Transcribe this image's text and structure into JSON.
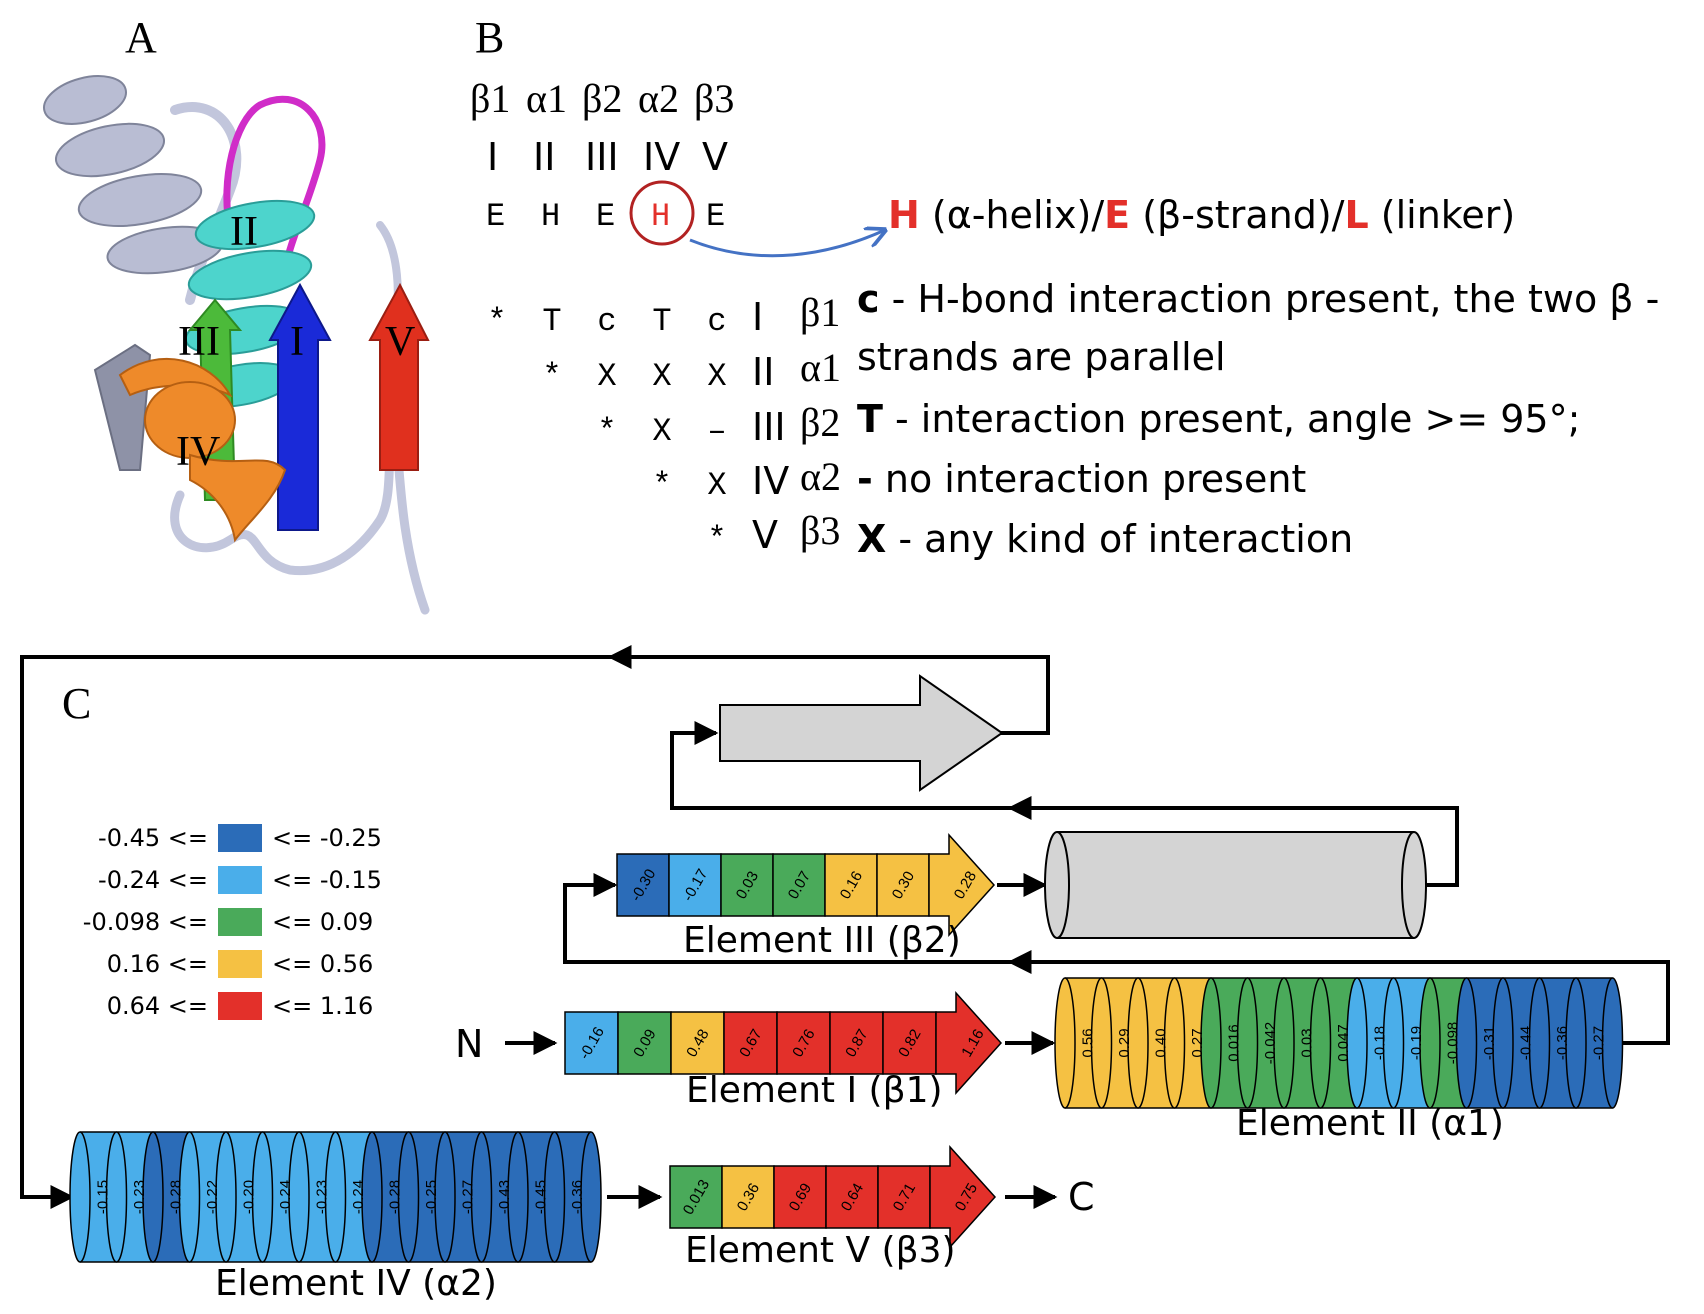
{
  "panels": {
    "a": "A",
    "b": "B",
    "c": "C"
  },
  "panel_a": {
    "labels": [
      "II",
      "III",
      "I",
      "V",
      "IV"
    ]
  },
  "panel_b": {
    "element_names": [
      "β1",
      "α1",
      "β2",
      "α2",
      "β3"
    ],
    "roman": [
      "I",
      "II",
      "III",
      "IV",
      "V"
    ],
    "sse": [
      "E",
      "H",
      "E",
      "H",
      "E"
    ],
    "sse_highlight_index": 3,
    "code_legend": {
      "h": "H",
      "h_text": " (α-helix)/",
      "e": "E",
      "e_text": " (β-strand)/",
      "l": "L",
      "l_text": " (linker)"
    },
    "matrix": [
      {
        "cells": [
          "*",
          "T",
          "c",
          "T",
          "c"
        ],
        "roman": "I",
        "greek": "β1"
      },
      {
        "cells": [
          "*",
          "X",
          "X",
          "X"
        ],
        "roman": "II",
        "greek": "α1"
      },
      {
        "cells": [
          "*",
          "X",
          "–"
        ],
        "roman": "III",
        "greek": "β2"
      },
      {
        "cells": [
          "*",
          "X"
        ],
        "roman": "IV",
        "greek": "α2"
      },
      {
        "cells": [
          "*"
        ],
        "roman": "V",
        "greek": "β3"
      }
    ],
    "key": {
      "c_sym": "c",
      "c_text1": " - H-bond interaction present, the two β -",
      "c_text2": "strands are parallel",
      "t_sym": "T",
      "t_text": " - interaction present, angle >= 95°;",
      "d_sym": "-",
      "d_text": " no interaction present",
      "x_sym": "X",
      "x_text": " - any kind of interaction"
    }
  },
  "panel_c": {
    "terminus_n": "N",
    "terminus_c": "C",
    "legend": [
      {
        "low": "-0.45 <=",
        "high": "<= -0.25",
        "color": "#2b6cb8"
      },
      {
        "low": "-0.24 <=",
        "high": "<= -0.15",
        "color": "#4aaeea"
      },
      {
        "low": "-0.098 <=",
        "high": "<= 0.09",
        "color": "#4aaa5a"
      },
      {
        "low": "0.16 <=",
        "high": "<= 0.56",
        "color": "#f5c143"
      },
      {
        "low": "0.64 <=",
        "high": "<= 1.16",
        "color": "#e3302a"
      }
    ],
    "elements": {
      "e1": {
        "label": "Element I (β1)",
        "values": [
          "-0.16",
          "0.09",
          "0.48",
          "0.67",
          "0.76",
          "0.87",
          "0.82",
          "1.16"
        ],
        "classes": [
          1,
          2,
          3,
          4,
          4,
          4,
          4,
          4
        ]
      },
      "e2": {
        "label": "Element II (α1)",
        "values": [
          "0.56",
          "0.29",
          "0.40",
          "0.27",
          "0.016",
          "-0.042",
          "0.03",
          "0.047",
          "-0.18",
          "-0.19",
          "-0.098",
          "-0.31",
          "-0.44",
          "-0.36",
          "-0.27"
        ],
        "classes": [
          3,
          3,
          3,
          3,
          2,
          2,
          2,
          2,
          1,
          1,
          2,
          0,
          0,
          0,
          0
        ]
      },
      "e3": {
        "label": "Element III (β2)",
        "values": [
          "-0.30",
          "-0.17",
          "0.03",
          "0.07",
          "0.16",
          "0.30",
          "0.28"
        ],
        "classes": [
          0,
          1,
          2,
          2,
          3,
          3,
          3
        ]
      },
      "e4": {
        "label": "Element IV (α2)",
        "values": [
          "-0.15",
          "-0.23",
          "-0.28",
          "-0.22",
          "-0.20",
          "-0.24",
          "-0.23",
          "-0.24",
          "-0.28",
          "-0.25",
          "-0.27",
          "-0.43",
          "-0.45",
          "-0.36"
        ],
        "classes": [
          1,
          1,
          0,
          1,
          1,
          1,
          1,
          1,
          0,
          0,
          0,
          0,
          0,
          0
        ]
      },
      "e5": {
        "label": "Element V (β3)",
        "values": [
          "0.013",
          "0.36",
          "0.69",
          "0.64",
          "0.71",
          "0.75"
        ],
        "classes": [
          2,
          3,
          4,
          4,
          4,
          4
        ]
      }
    },
    "colors": {
      "grey": "#d4d4d4",
      "arrow_blue": "#4472c4",
      "circle_red": "#b22222",
      "code_red": "#e3302a"
    }
  }
}
